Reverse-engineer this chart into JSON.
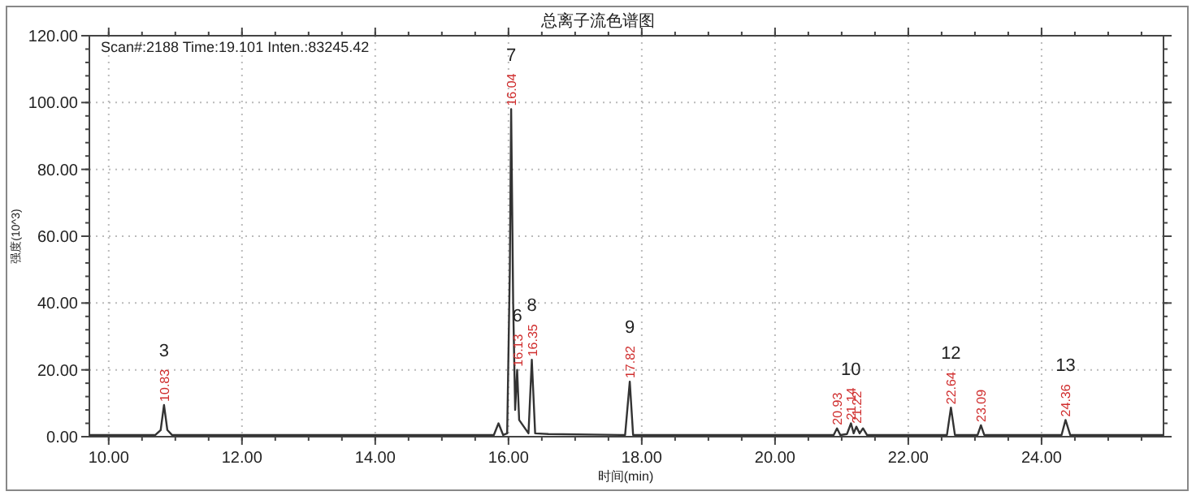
{
  "chart_data": {
    "type": "line",
    "title": "总离子流色谱图",
    "xlabel": "时间(min)",
    "ylabel": "强度(10^3)",
    "xlim": [
      9.71,
      25.83
    ],
    "ylim": [
      0,
      120
    ],
    "xticks": [
      {
        "value": 10,
        "label": "10.00"
      },
      {
        "value": 12,
        "label": "12.00"
      },
      {
        "value": 14,
        "label": "14.00"
      },
      {
        "value": 16,
        "label": "16.00"
      },
      {
        "value": 18,
        "label": "18.00"
      },
      {
        "value": 20,
        "label": "20.00"
      },
      {
        "value": 22,
        "label": "22.00"
      },
      {
        "value": 24,
        "label": "24.00"
      }
    ],
    "yticks": [
      {
        "value": 0,
        "label": "0.00"
      },
      {
        "value": 20,
        "label": "20.00"
      },
      {
        "value": 40,
        "label": "40.00"
      },
      {
        "value": 60,
        "label": "60.00"
      },
      {
        "value": 80,
        "label": "80.00"
      },
      {
        "value": 100,
        "label": "100.00"
      },
      {
        "value": 120,
        "label": "120.00"
      }
    ],
    "grid": true,
    "series": [
      {
        "color": "#333333",
        "x": [
          9.71,
          10.7,
          10.78,
          10.83,
          10.88,
          10.95,
          12.4,
          15.78,
          15.85,
          15.92,
          15.98,
          16.02,
          16.04,
          16.07,
          16.1,
          16.13,
          16.16,
          16.3,
          16.35,
          16.4,
          16.6,
          17.75,
          17.82,
          17.87,
          20.88,
          20.93,
          20.98,
          21.08,
          21.14,
          21.18,
          21.22,
          21.27,
          21.32,
          21.38,
          22.58,
          22.64,
          22.7,
          23.04,
          23.09,
          23.14,
          24.3,
          24.36,
          24.43,
          25.83
        ],
        "values": [
          0.5,
          0.5,
          2,
          9.5,
          2,
          0.5,
          0.5,
          0.5,
          4,
          0.5,
          1,
          50,
          98,
          40,
          8,
          20,
          5,
          1,
          23,
          1,
          0.8,
          0.5,
          16.5,
          0.5,
          0.5,
          2.5,
          0.5,
          0.8,
          4,
          1,
          3,
          1,
          2.5,
          0.5,
          0.5,
          8.7,
          0.5,
          0.5,
          3.4,
          0.5,
          0.5,
          5,
          0.5,
          0.5
        ]
      }
    ],
    "annotations": [
      "Scan#:2188  Time:19.101  Inten.:83245.42",
      {
        "text": "3",
        "x": 10.83,
        "y": 9.5
      },
      {
        "text": "7",
        "x": 16.04,
        "y": 98
      },
      {
        "text": "6",
        "x": 16.13,
        "y": 20
      },
      {
        "text": "8",
        "x": 16.35,
        "y": 23
      },
      {
        "text": "9",
        "x": 17.82,
        "y": 16.5
      },
      {
        "text": "10",
        "x": 21.14,
        "y": 4
      },
      {
        "text": "12",
        "x": 22.64,
        "y": 8.7
      },
      {
        "text": "13",
        "x": 24.36,
        "y": 5
      },
      {
        "text": "10.83",
        "x": 10.83,
        "y": 9.5
      },
      {
        "text": "16.04",
        "x": 16.04,
        "y": 98
      },
      {
        "text": "16.13",
        "x": 16.13,
        "y": 20
      },
      {
        "text": "16.35",
        "x": 16.35,
        "y": 23
      },
      {
        "text": "17.82",
        "x": 17.82,
        "y": 16.5
      },
      {
        "text": "20.93",
        "x": 20.93,
        "y": 2.5
      },
      {
        "text": "21.14",
        "x": 21.14,
        "y": 4
      },
      {
        "text": "21.22",
        "x": 21.22,
        "y": 3
      },
      {
        "text": "22.64",
        "x": 22.64,
        "y": 8.7
      },
      {
        "text": "23.09",
        "x": 23.09,
        "y": 3.4
      },
      {
        "text": "24.36",
        "x": 24.36,
        "y": 5
      }
    ]
  }
}
